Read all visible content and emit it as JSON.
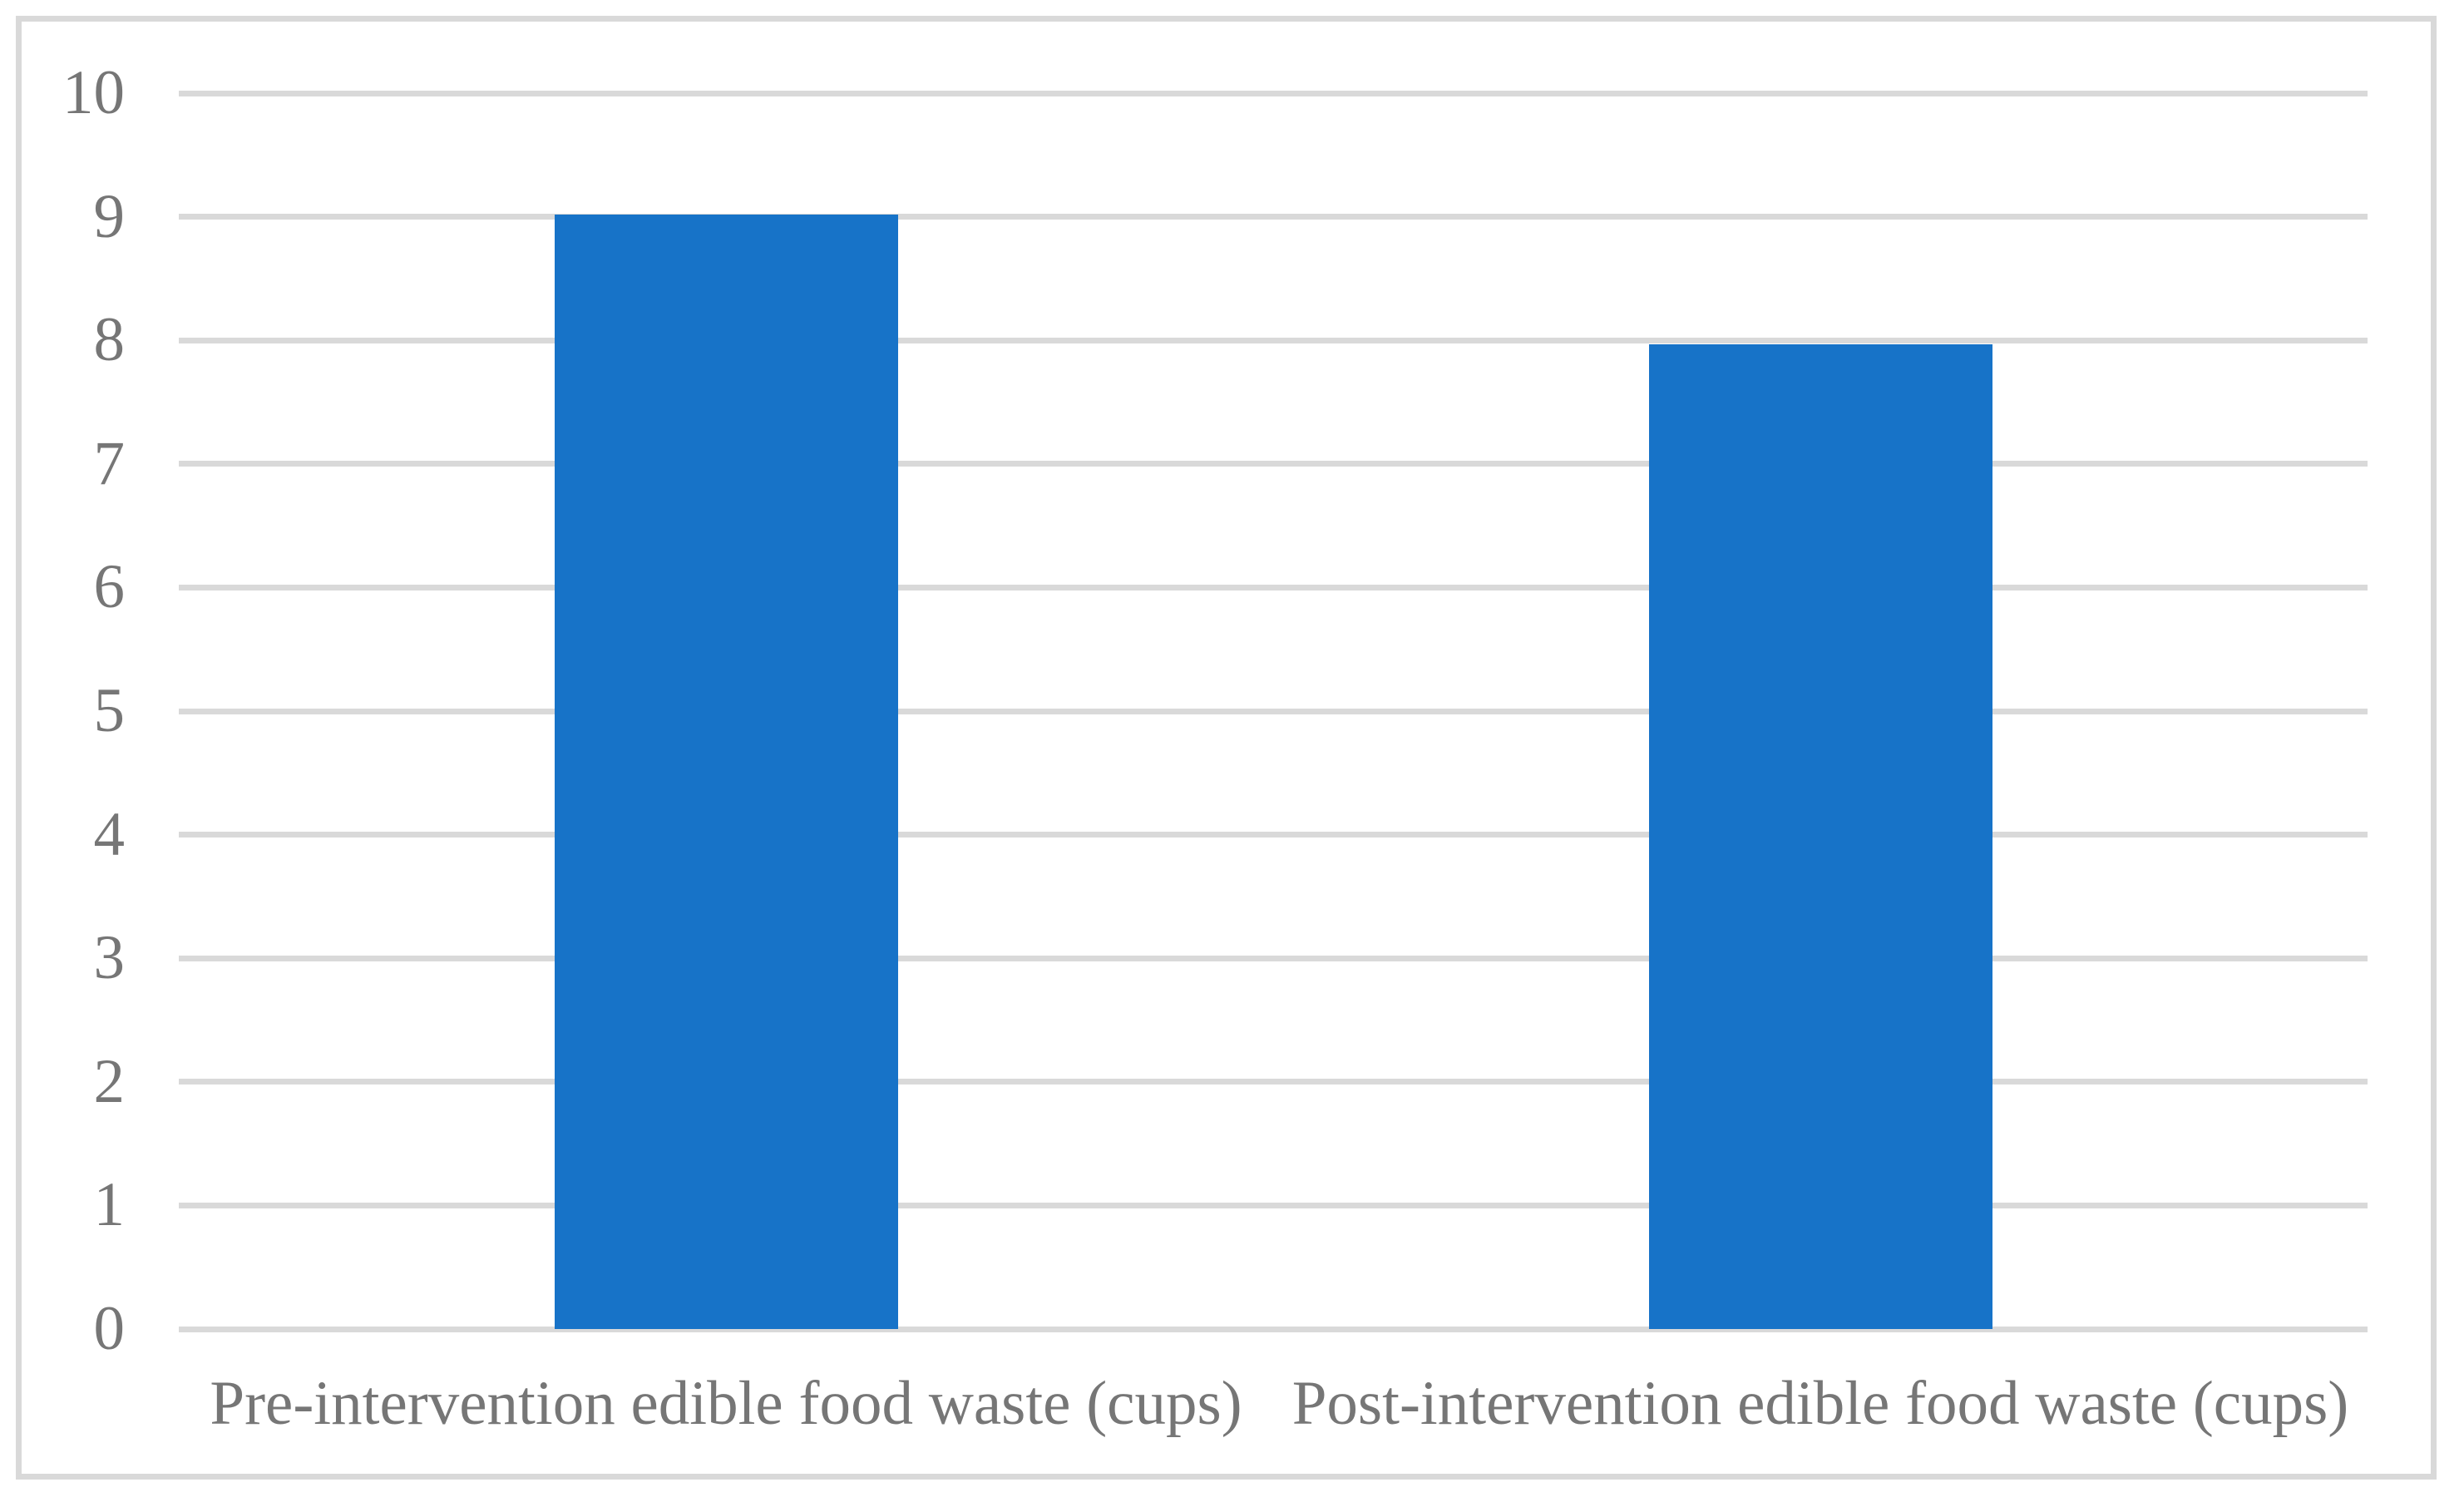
{
  "figure": {
    "background_color": "#FFFFFF",
    "border_color": "#D9D9D9"
  },
  "chart_data": {
    "type": "bar",
    "title": "",
    "xlabel": "",
    "ylabel": "",
    "categories": [
      "Pre-intervention edible food waste (cups)",
      "Post-intervention edible food waste (cups)"
    ],
    "values": [
      9.02,
      7.97
    ],
    "ylim": [
      0,
      10
    ],
    "yticks": [
      0,
      1,
      2,
      3,
      4,
      5,
      6,
      7,
      8,
      9,
      10
    ],
    "grid": "horizontal",
    "legend": "none",
    "bar_color": "#1773C8",
    "gridline_color": "#D9D9D9",
    "axis_text_color": "#767676"
  }
}
